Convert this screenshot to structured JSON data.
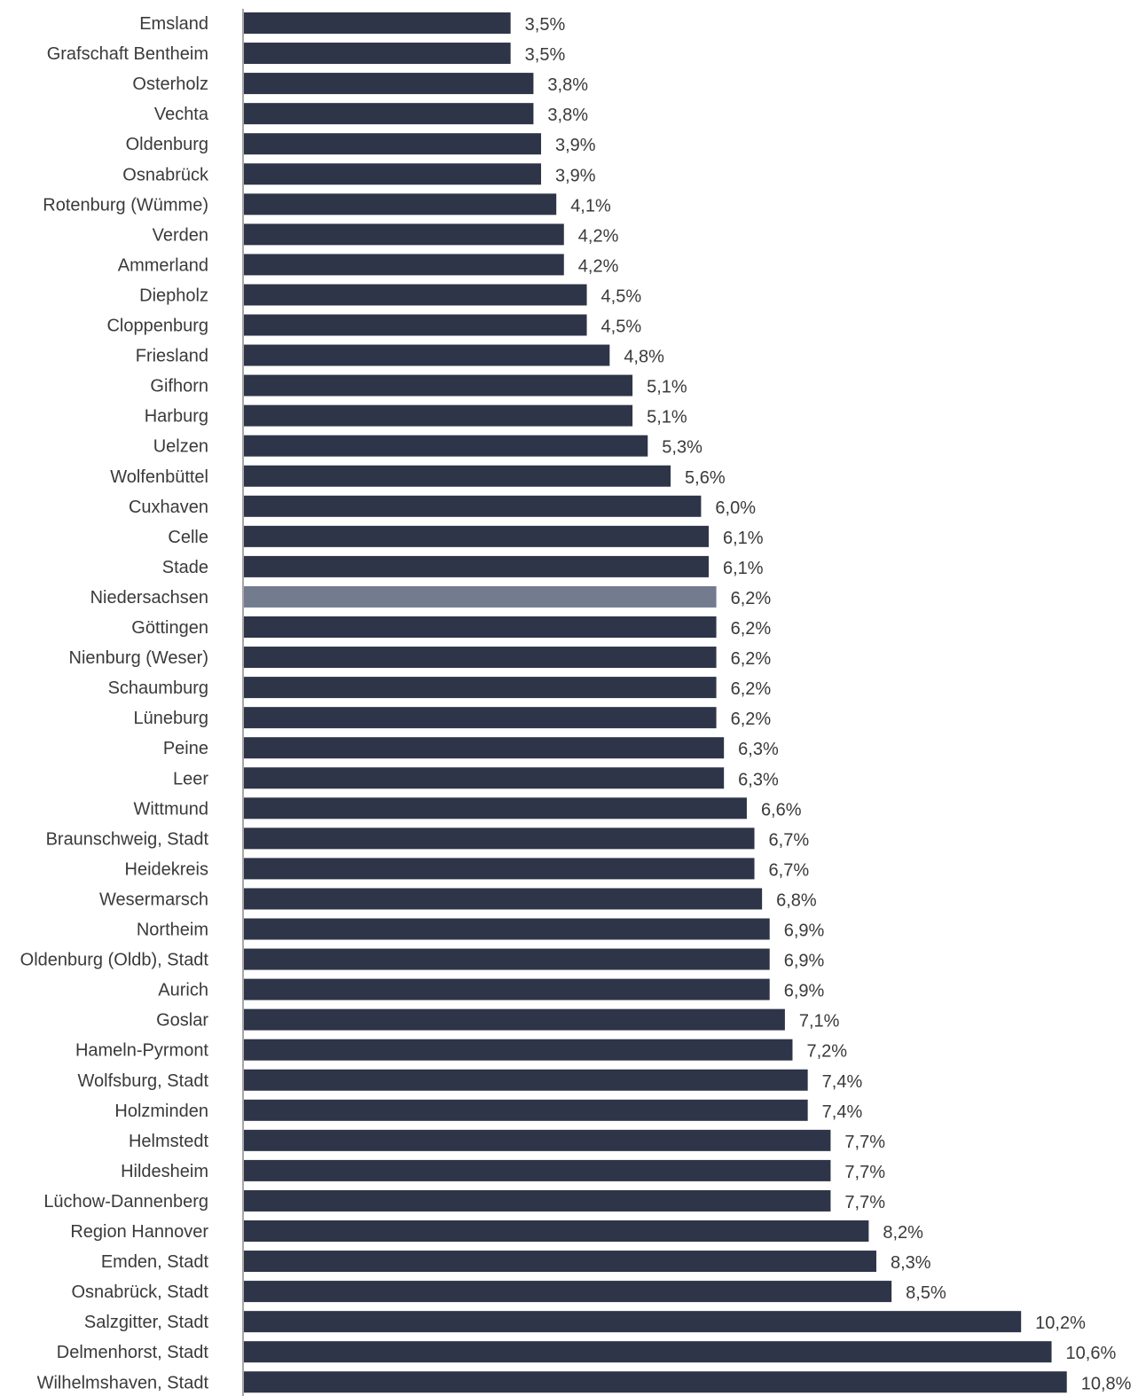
{
  "chart_data": {
    "type": "bar",
    "orientation": "horizontal",
    "title": "",
    "xlabel": "",
    "ylabel": "",
    "value_suffix": "%",
    "decimal_separator": ",",
    "xlim": [
      0,
      10.8
    ],
    "grid": false,
    "legend": "none",
    "bar_color": "#2e3548",
    "highlight_color": "#737b8f",
    "highlight_category": "Niedersachsen",
    "categories": [
      "Emsland",
      "Grafschaft Bentheim",
      "Osterholz",
      "Vechta",
      "Oldenburg",
      "Osnabrück",
      "Rotenburg (Wümme)",
      "Verden",
      "Ammerland",
      "Diepholz",
      "Cloppenburg",
      "Friesland",
      "Gifhorn",
      "Harburg",
      "Uelzen",
      "Wolfenbüttel",
      "Cuxhaven",
      "Celle",
      "Stade",
      "Niedersachsen",
      "Göttingen",
      "Nienburg (Weser)",
      "Schaumburg",
      "Lüneburg",
      "Peine",
      "Leer",
      "Wittmund",
      "Braunschweig, Stadt",
      "Heidekreis",
      "Wesermarsch",
      "Northeim",
      "Oldenburg (Oldb), Stadt",
      "Aurich",
      "Goslar",
      "Hameln-Pyrmont",
      "Wolfsburg, Stadt",
      "Holzminden",
      "Helmstedt",
      "Hildesheim",
      "Lüchow-Dannenberg",
      "Region Hannover",
      "Emden, Stadt",
      "Osnabrück, Stadt",
      "Salzgitter, Stadt",
      "Delmenhorst, Stadt",
      "Wilhelmshaven, Stadt"
    ],
    "values": [
      3.5,
      3.5,
      3.8,
      3.8,
      3.9,
      3.9,
      4.1,
      4.2,
      4.2,
      4.5,
      4.5,
      4.8,
      5.1,
      5.1,
      5.3,
      5.6,
      6.0,
      6.1,
      6.1,
      6.2,
      6.2,
      6.2,
      6.2,
      6.2,
      6.3,
      6.3,
      6.6,
      6.7,
      6.7,
      6.8,
      6.9,
      6.9,
      6.9,
      7.1,
      7.2,
      7.4,
      7.4,
      7.7,
      7.7,
      7.7,
      8.2,
      8.3,
      8.5,
      10.2,
      10.6,
      10.8
    ],
    "value_labels": [
      "3,5%",
      "3,5%",
      "3,8%",
      "3,8%",
      "3,9%",
      "3,9%",
      "4,1%",
      "4,2%",
      "4,2%",
      "4,5%",
      "4,5%",
      "4,8%",
      "5,1%",
      "5,1%",
      "5,3%",
      "5,6%",
      "6,0%",
      "6,1%",
      "6,1%",
      "6,2%",
      "6,2%",
      "6,2%",
      "6,2%",
      "6,2%",
      "6,3%",
      "6,3%",
      "6,6%",
      "6,7%",
      "6,7%",
      "6,8%",
      "6,9%",
      "6,9%",
      "6,9%",
      "7,1%",
      "7,2%",
      "7,4%",
      "7,4%",
      "7,7%",
      "7,7%",
      "7,7%",
      "8,2%",
      "8,3%",
      "8,5%",
      "10,2%",
      "10,6%",
      "10,8%"
    ]
  }
}
